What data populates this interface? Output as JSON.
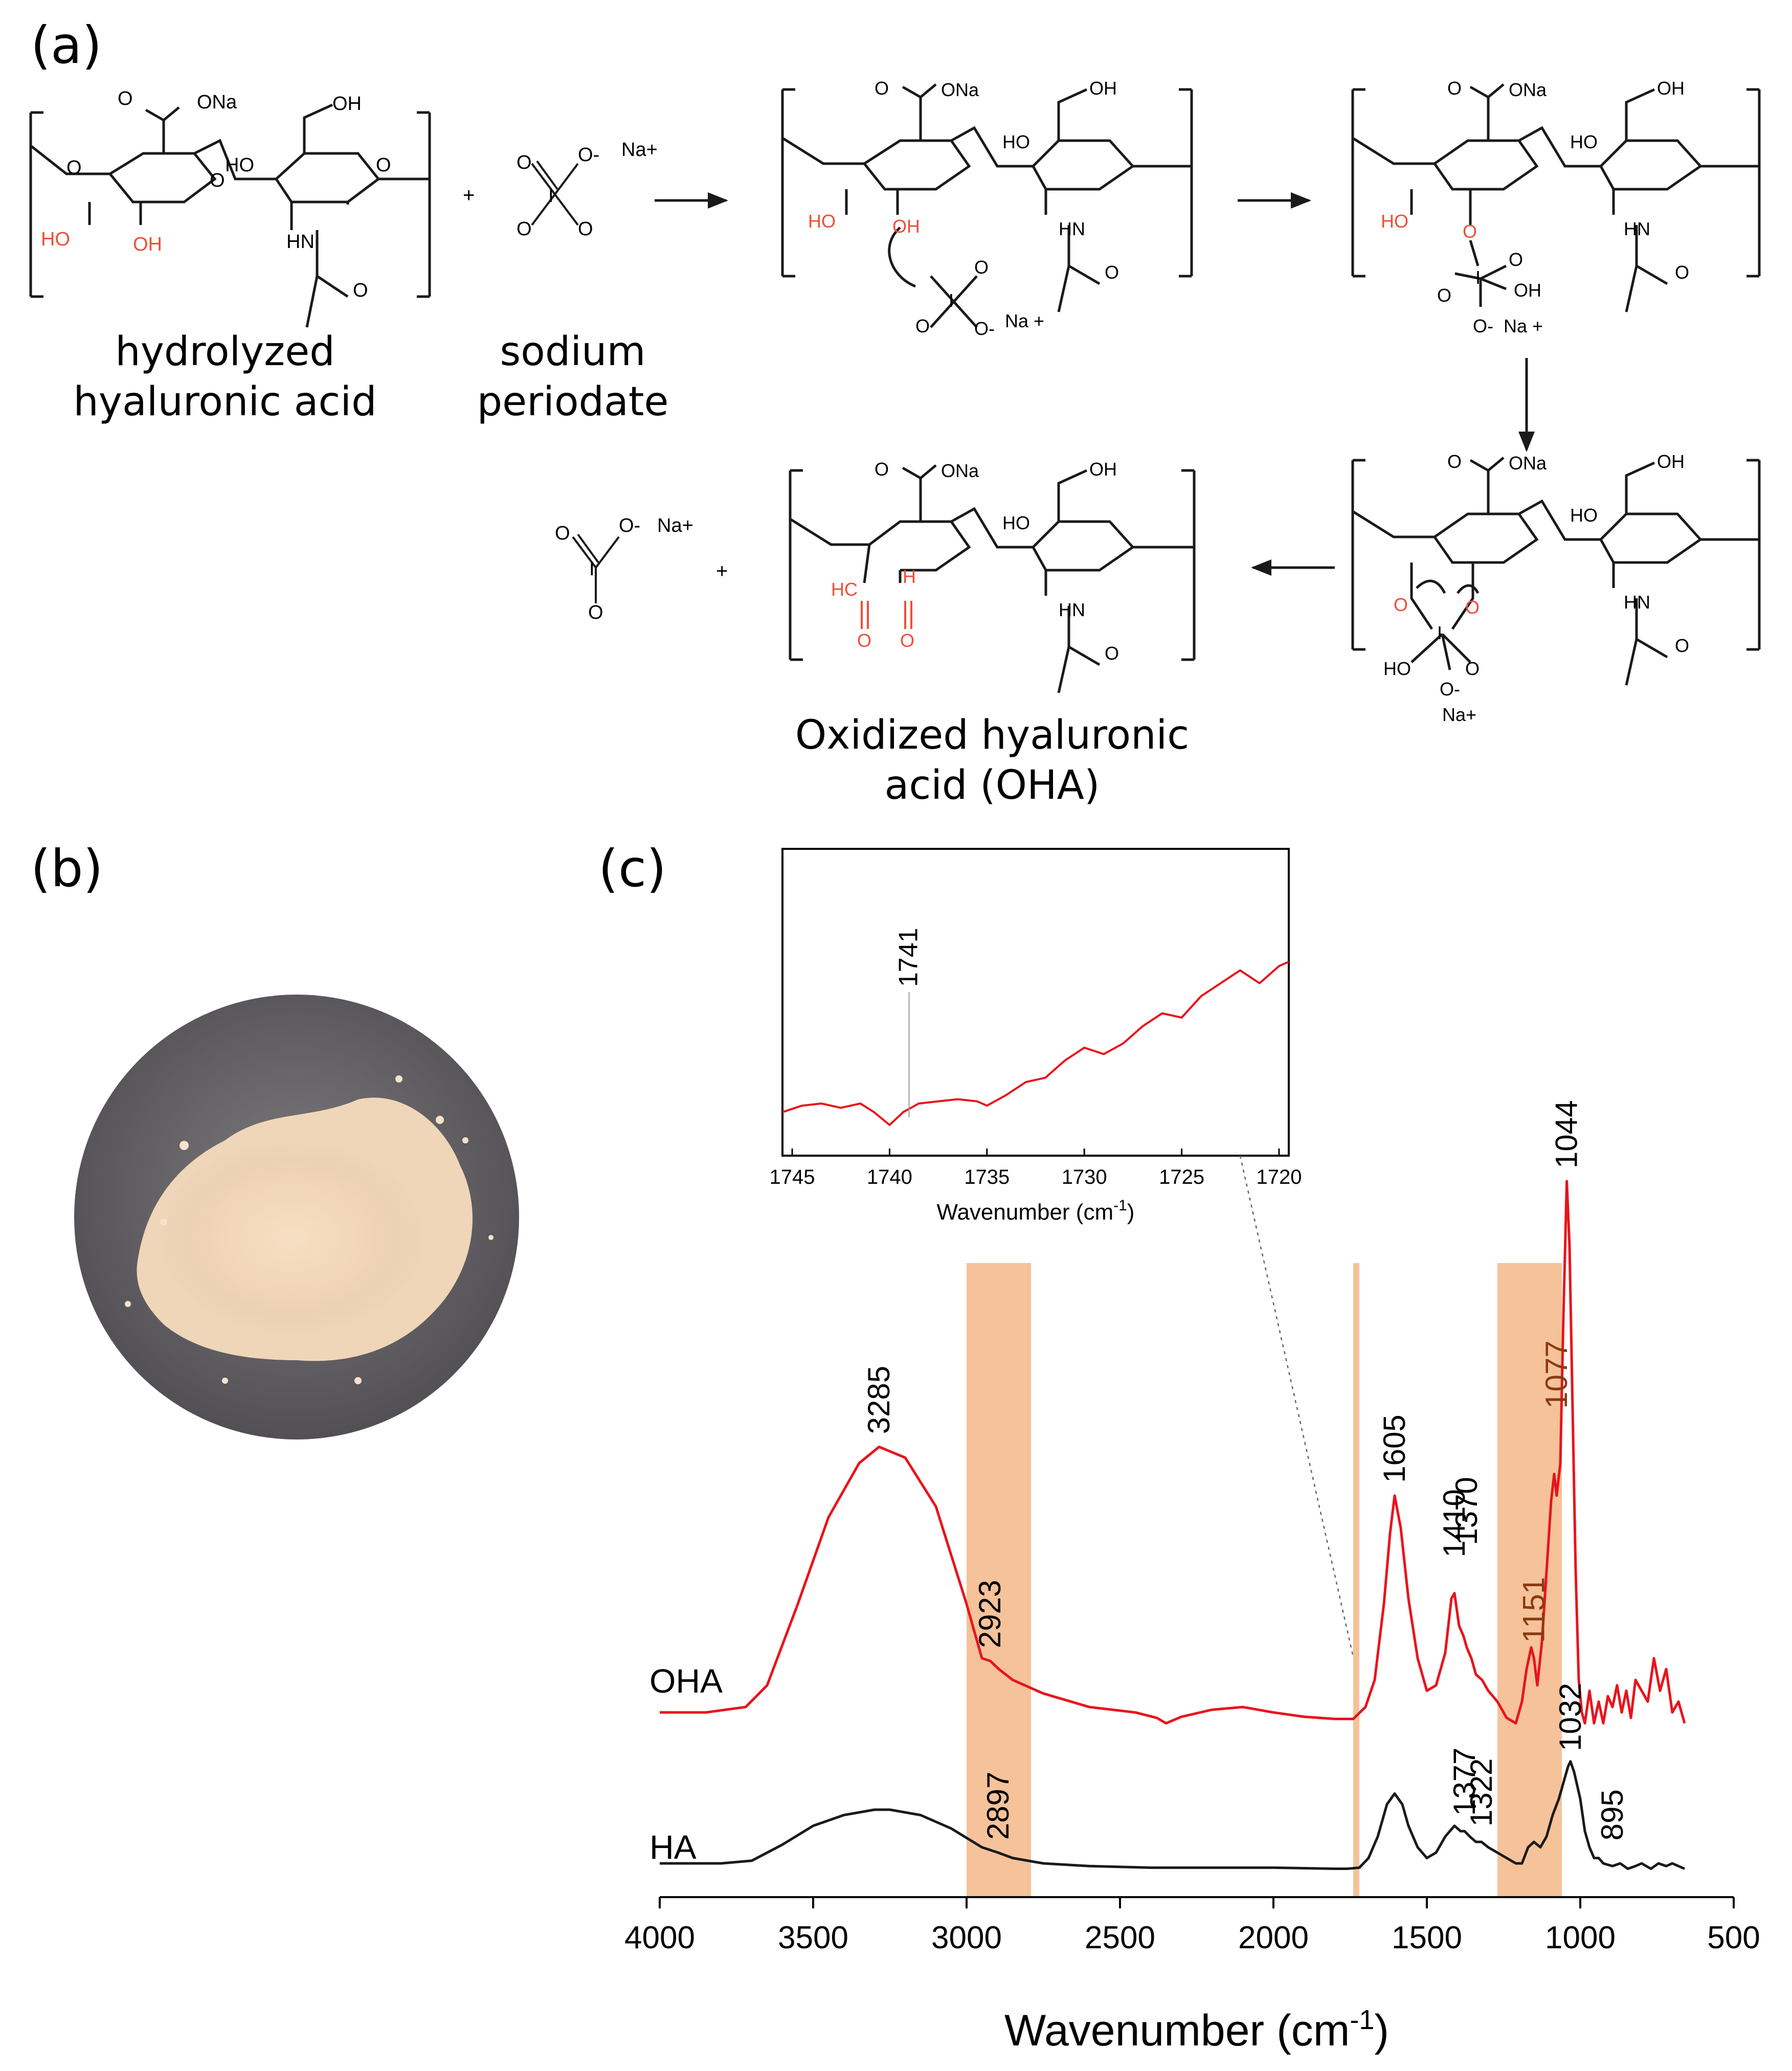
{
  "panels": {
    "a_label": "(a)",
    "b_label": "(b)",
    "c_label": "(c)"
  },
  "scheme": {
    "reactant1_line1": "hydrolyzed",
    "reactant1_line2": "hyaluronic acid",
    "reactant2_line1": "sodium",
    "reactant2_line2": "periodate",
    "product_line1": "Oxidized hyaluronic",
    "product_line2": "acid (OHA)",
    "atoms": {
      "ona": "ONa",
      "oh": "OH",
      "ho": "HO",
      "hn": "HN",
      "o": "O",
      "o_minus": "O-",
      "na_plus": "Na+",
      "na_plus_spaced": "Na +",
      "hc": "HC",
      "h": "H",
      "i": "I",
      "plus": "+"
    },
    "colors": {
      "highlight": "#f04e37",
      "bond": "#1a1a1a"
    }
  },
  "photo": {
    "subject": "OHA powder",
    "colors": {
      "background": "#6a686c",
      "powder": "#f2d9bd"
    }
  },
  "chart_data": {
    "type": "line",
    "xlabel": "Wavenumber (cm",
    "xlabel_sup": "-1",
    "xlabel_close": ")",
    "xlim": [
      4000,
      500
    ],
    "xticks": [
      4000,
      3500,
      3000,
      2500,
      2000,
      1500,
      1000,
      500
    ],
    "series": [
      {
        "name": "OHA",
        "color": "#e8141c",
        "x": [
          4000,
          3850,
          3720,
          3650,
          3550,
          3450,
          3350,
          3285,
          3200,
          3100,
          3000,
          2950,
          2923,
          2895,
          2850,
          2750,
          2600,
          2450,
          2380,
          2350,
          2300,
          2200,
          2100,
          2000,
          1900,
          1800,
          1740,
          1700,
          1670,
          1640,
          1620,
          1605,
          1585,
          1560,
          1530,
          1500,
          1470,
          1440,
          1420,
          1410,
          1395,
          1380,
          1370,
          1355,
          1340,
          1320,
          1300,
          1270,
          1240,
          1210,
          1190,
          1175,
          1160,
          1151,
          1140,
          1125,
          1110,
          1095,
          1085,
          1077,
          1065,
          1055,
          1044,
          1035,
          1025,
          1015,
          1005,
          995,
          985,
          970,
          955,
          940,
          925,
          910,
          895,
          880,
          865,
          850,
          835,
          820,
          800,
          780,
          760,
          740,
          720,
          700,
          680,
          660
        ],
        "y": [
          0.02,
          0.02,
          0.03,
          0.07,
          0.22,
          0.38,
          0.48,
          0.51,
          0.49,
          0.4,
          0.22,
          0.12,
          0.115,
          0.1,
          0.08,
          0.055,
          0.03,
          0.02,
          0.01,
          0.0,
          0.012,
          0.025,
          0.03,
          0.02,
          0.012,
          0.008,
          0.008,
          0.03,
          0.08,
          0.22,
          0.35,
          0.42,
          0.36,
          0.23,
          0.12,
          0.06,
          0.07,
          0.13,
          0.23,
          0.24,
          0.18,
          0.16,
          0.14,
          0.12,
          0.09,
          0.08,
          0.06,
          0.04,
          0.01,
          0.0,
          0.04,
          0.1,
          0.14,
          0.12,
          0.07,
          0.15,
          0.28,
          0.41,
          0.46,
          0.42,
          0.48,
          0.75,
          1.0,
          0.88,
          0.58,
          0.28,
          0.08,
          0.02,
          0.0,
          0.06,
          0.0,
          0.04,
          0.0,
          0.05,
          0.03,
          0.07,
          0.02,
          0.06,
          0.01,
          0.08,
          0.06,
          0.04,
          0.12,
          0.06,
          0.1,
          0.02,
          0.04,
          0.0
        ]
      },
      {
        "name": "HA",
        "color": "#1a1a1a",
        "x": [
          4000,
          3800,
          3700,
          3600,
          3500,
          3400,
          3300,
          3250,
          3150,
          3050,
          2950,
          2897,
          2850,
          2750,
          2600,
          2400,
          2200,
          2000,
          1800,
          1760,
          1720,
          1690,
          1660,
          1630,
          1605,
          1580,
          1560,
          1530,
          1500,
          1470,
          1440,
          1410,
          1400,
          1390,
          1377,
          1360,
          1340,
          1322,
          1300,
          1270,
          1240,
          1210,
          1190,
          1170,
          1151,
          1130,
          1110,
          1090,
          1070,
          1055,
          1040,
          1032,
          1020,
          1000,
          985,
          970,
          955,
          940,
          925,
          895,
          870,
          845,
          820,
          800,
          770,
          745,
          720,
          700,
          680,
          660
        ],
        "y": [
          0.02,
          0.02,
          0.025,
          0.055,
          0.09,
          0.11,
          0.12,
          0.12,
          0.11,
          0.085,
          0.05,
          0.04,
          0.03,
          0.02,
          0.015,
          0.012,
          0.012,
          0.012,
          0.01,
          0.01,
          0.012,
          0.03,
          0.07,
          0.13,
          0.15,
          0.13,
          0.09,
          0.05,
          0.03,
          0.04,
          0.07,
          0.09,
          0.085,
          0.08,
          0.08,
          0.07,
          0.06,
          0.06,
          0.05,
          0.04,
          0.03,
          0.02,
          0.02,
          0.05,
          0.06,
          0.05,
          0.07,
          0.11,
          0.14,
          0.17,
          0.2,
          0.21,
          0.19,
          0.14,
          0.08,
          0.05,
          0.03,
          0.03,
          0.02,
          0.015,
          0.02,
          0.01,
          0.015,
          0.02,
          0.01,
          0.02,
          0.015,
          0.02,
          0.015,
          0.01
        ]
      }
    ],
    "series_labels": [
      "OHA",
      "HA"
    ],
    "highlight_bands": [
      [
        3000,
        2790
      ],
      [
        1740,
        1720
      ],
      [
        1270,
        1060
      ]
    ],
    "band_color": "#f5c29a",
    "oha_peaks": [
      "3285",
      "2923",
      "1605",
      "1410",
      "1370",
      "1151",
      "1077",
      "1044"
    ],
    "ha_peaks": [
      "2897",
      "1377",
      "1322",
      "1032",
      "895"
    ],
    "inset": {
      "type": "line",
      "xlabel": "Wavenumber (cm",
      "xlabel_sup": "-1",
      "xlabel_close": ")",
      "xlim": [
        1745.5,
        1719.5
      ],
      "xticks": [
        1745,
        1740,
        1735,
        1730,
        1725,
        1720
      ],
      "annotation": "1741",
      "x": [
        1745.5,
        1744.5,
        1743.5,
        1742.5,
        1741.5,
        1740.8,
        1740.0,
        1739.3,
        1738.5,
        1737.5,
        1736.5,
        1735.5,
        1735.0,
        1734.0,
        1733.0,
        1732.0,
        1731.0,
        1730.0,
        1729.0,
        1728.0,
        1727.0,
        1726.0,
        1725.0,
        1724.0,
        1723.0,
        1722.0,
        1721.0,
        1720.0,
        1719.5
      ],
      "y": [
        0.06,
        0.09,
        0.1,
        0.08,
        0.1,
        0.06,
        0.0,
        0.06,
        0.1,
        0.11,
        0.12,
        0.11,
        0.09,
        0.14,
        0.2,
        0.22,
        0.3,
        0.36,
        0.33,
        0.38,
        0.46,
        0.52,
        0.5,
        0.6,
        0.66,
        0.72,
        0.66,
        0.74,
        0.76
      ]
    }
  }
}
